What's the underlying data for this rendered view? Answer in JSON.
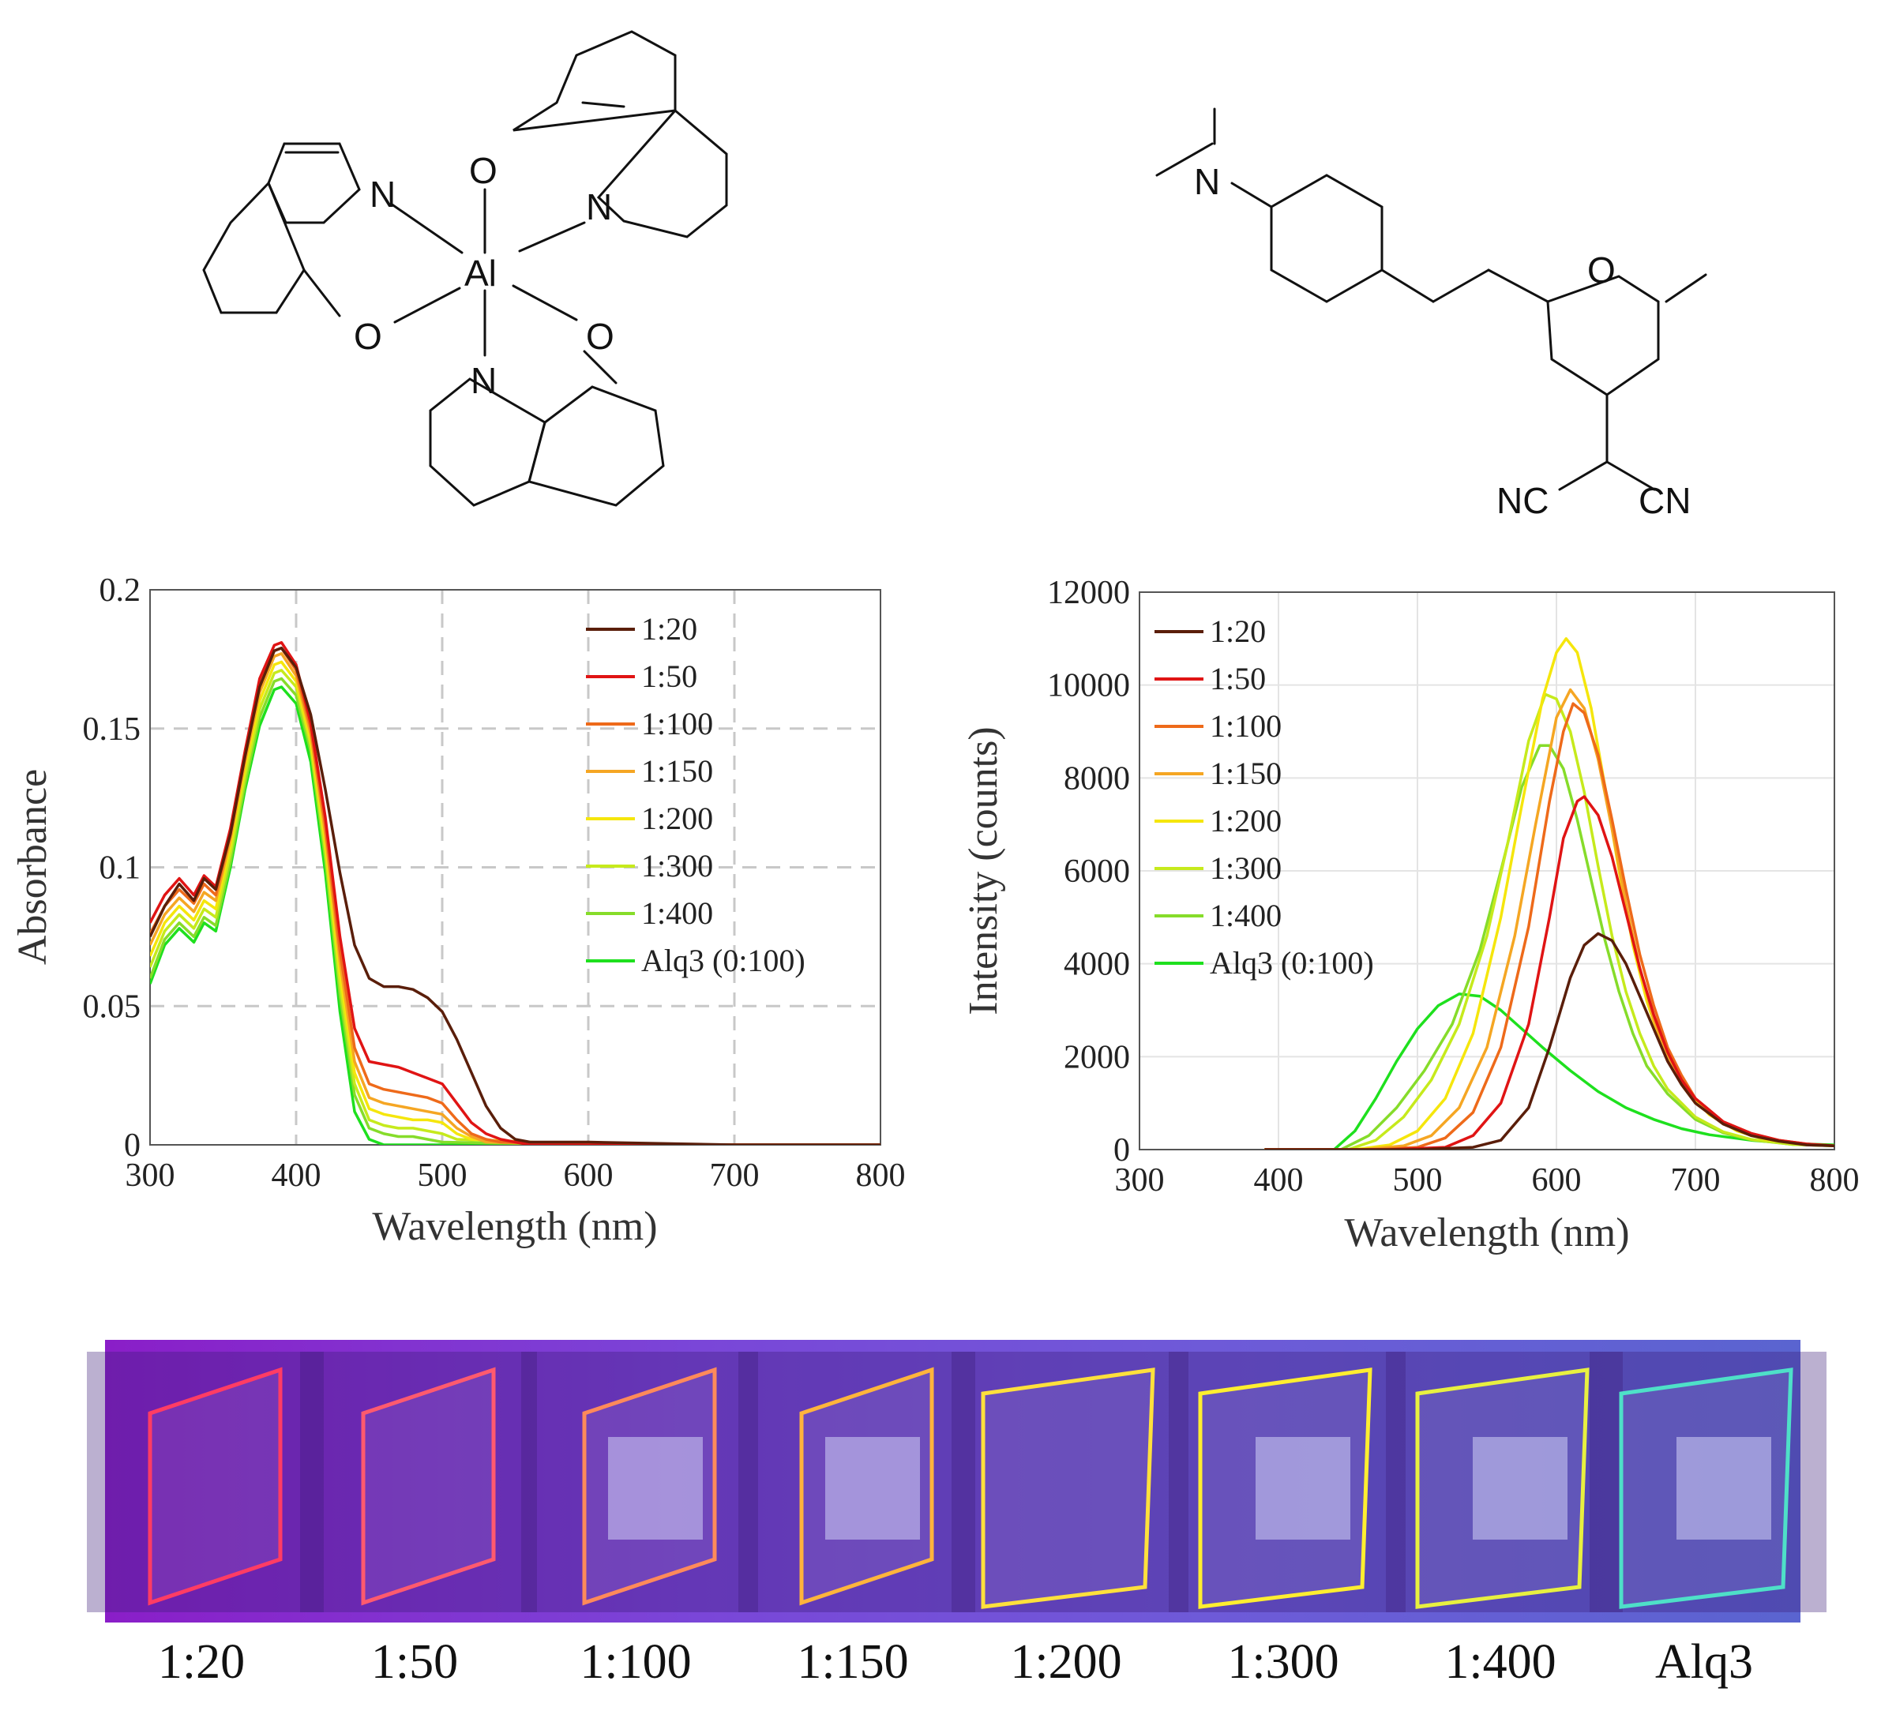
{
  "structures": {
    "alq3_atoms": [
      "N",
      "N",
      "N",
      "O",
      "O",
      "O",
      "Al"
    ],
    "dcm_atoms": [
      "N",
      "O",
      "NC",
      "CN"
    ]
  },
  "chart_data": [
    {
      "type": "line",
      "xlabel": "Wavelength (nm)",
      "ylabel": "Absorbance",
      "xlim": [
        300,
        800
      ],
      "ylim": [
        0,
        0.2
      ],
      "xticks": [
        "300",
        "400",
        "500",
        "600",
        "700",
        "800"
      ],
      "yticks": [
        "0",
        "0.05",
        "0.1",
        "0.15",
        "0.2"
      ],
      "grid": "dashed",
      "legend_position": "top-right",
      "series": [
        {
          "name": "1:20",
          "color": "#5a1e0a",
          "x": [
            300,
            310,
            320,
            330,
            337,
            345,
            355,
            365,
            375,
            385,
            390,
            400,
            410,
            420,
            430,
            440,
            450,
            460,
            470,
            480,
            490,
            500,
            510,
            520,
            530,
            540,
            550,
            560,
            600,
            700,
            800
          ],
          "y": [
            0.075,
            0.086,
            0.094,
            0.088,
            0.096,
            0.092,
            0.112,
            0.14,
            0.165,
            0.178,
            0.179,
            0.172,
            0.155,
            0.128,
            0.098,
            0.072,
            0.06,
            0.057,
            0.057,
            0.056,
            0.053,
            0.048,
            0.038,
            0.026,
            0.014,
            0.006,
            0.002,
            0.001,
            0.001,
            0.0,
            0.0
          ]
        },
        {
          "name": "1:50",
          "color": "#e01414",
          "x": [
            300,
            310,
            320,
            330,
            337,
            345,
            355,
            365,
            375,
            385,
            390,
            400,
            410,
            420,
            430,
            440,
            450,
            460,
            470,
            480,
            490,
            500,
            510,
            520,
            530,
            540,
            550,
            560,
            600,
            700,
            800
          ],
          "y": [
            0.08,
            0.09,
            0.096,
            0.09,
            0.097,
            0.093,
            0.114,
            0.142,
            0.168,
            0.18,
            0.181,
            0.173,
            0.152,
            0.118,
            0.075,
            0.042,
            0.03,
            0.029,
            0.028,
            0.026,
            0.024,
            0.022,
            0.015,
            0.008,
            0.004,
            0.002,
            0.001,
            0.0,
            0.0,
            0.0,
            0.0
          ]
        },
        {
          "name": "1:100",
          "color": "#ee6a1a",
          "x": [
            300,
            310,
            320,
            330,
            337,
            345,
            355,
            365,
            375,
            385,
            390,
            400,
            410,
            420,
            430,
            440,
            450,
            460,
            470,
            480,
            490,
            500,
            510,
            520,
            530,
            540,
            600,
            700,
            800
          ],
          "y": [
            0.076,
            0.086,
            0.092,
            0.087,
            0.094,
            0.09,
            0.112,
            0.14,
            0.166,
            0.178,
            0.179,
            0.171,
            0.15,
            0.115,
            0.07,
            0.035,
            0.022,
            0.02,
            0.019,
            0.018,
            0.017,
            0.015,
            0.009,
            0.004,
            0.002,
            0.001,
            0.0,
            0.0,
            0.0
          ]
        },
        {
          "name": "1:150",
          "color": "#f5a623",
          "x": [
            300,
            310,
            320,
            330,
            337,
            345,
            355,
            365,
            375,
            385,
            390,
            400,
            410,
            420,
            430,
            440,
            450,
            460,
            470,
            480,
            490,
            500,
            510,
            520,
            530,
            600,
            700,
            800
          ],
          "y": [
            0.072,
            0.083,
            0.089,
            0.084,
            0.091,
            0.088,
            0.11,
            0.138,
            0.163,
            0.176,
            0.177,
            0.169,
            0.148,
            0.112,
            0.066,
            0.03,
            0.017,
            0.015,
            0.014,
            0.013,
            0.012,
            0.011,
            0.006,
            0.003,
            0.001,
            0.0,
            0.0,
            0.0
          ]
        },
        {
          "name": "1:200",
          "color": "#f5e60c",
          "x": [
            300,
            310,
            320,
            330,
            337,
            345,
            355,
            365,
            375,
            385,
            390,
            400,
            410,
            420,
            430,
            440,
            450,
            460,
            470,
            480,
            490,
            500,
            510,
            520,
            600,
            700,
            800
          ],
          "y": [
            0.068,
            0.08,
            0.086,
            0.081,
            0.088,
            0.085,
            0.108,
            0.136,
            0.16,
            0.173,
            0.174,
            0.167,
            0.146,
            0.109,
            0.062,
            0.026,
            0.013,
            0.011,
            0.01,
            0.009,
            0.009,
            0.008,
            0.004,
            0.002,
            0.0,
            0.0,
            0.0
          ]
        },
        {
          "name": "1:300",
          "color": "#c6ea1c",
          "x": [
            300,
            310,
            320,
            330,
            337,
            345,
            355,
            365,
            375,
            385,
            390,
            400,
            410,
            420,
            430,
            440,
            450,
            460,
            470,
            480,
            490,
            500,
            510,
            600,
            700,
            800
          ],
          "y": [
            0.064,
            0.077,
            0.083,
            0.078,
            0.085,
            0.082,
            0.105,
            0.133,
            0.157,
            0.17,
            0.171,
            0.165,
            0.144,
            0.106,
            0.058,
            0.022,
            0.009,
            0.007,
            0.006,
            0.006,
            0.005,
            0.004,
            0.002,
            0.0,
            0.0,
            0.0
          ]
        },
        {
          "name": "1:400",
          "color": "#86dc2a",
          "x": [
            300,
            310,
            320,
            330,
            337,
            345,
            355,
            365,
            375,
            385,
            390,
            400,
            410,
            420,
            430,
            440,
            450,
            460,
            470,
            480,
            490,
            500,
            600,
            700,
            800
          ],
          "y": [
            0.06,
            0.074,
            0.08,
            0.075,
            0.082,
            0.079,
            0.102,
            0.13,
            0.154,
            0.167,
            0.168,
            0.162,
            0.142,
            0.103,
            0.054,
            0.018,
            0.006,
            0.004,
            0.003,
            0.003,
            0.002,
            0.001,
            0.0,
            0.0,
            0.0
          ]
        },
        {
          "name": "Alq3 (0:100)",
          "color": "#1ee01e",
          "x": [
            300,
            310,
            320,
            330,
            337,
            345,
            355,
            365,
            375,
            385,
            390,
            400,
            410,
            420,
            430,
            440,
            450,
            460,
            600,
            700,
            800
          ],
          "y": [
            0.058,
            0.072,
            0.078,
            0.073,
            0.08,
            0.077,
            0.1,
            0.128,
            0.151,
            0.164,
            0.165,
            0.159,
            0.138,
            0.098,
            0.048,
            0.012,
            0.002,
            0.0,
            0.0,
            0.0,
            0.0
          ]
        }
      ]
    },
    {
      "type": "line",
      "xlabel": "Wavelength (nm)",
      "ylabel": "Intensity (counts)",
      "xlim": [
        300,
        800
      ],
      "ylim": [
        0,
        12000
      ],
      "xticks": [
        "300",
        "400",
        "500",
        "600",
        "700",
        "800"
      ],
      "yticks": [
        "0",
        "2000",
        "4000",
        "6000",
        "8000",
        "10000",
        "12000"
      ],
      "grid": "solid",
      "legend_position": "top-left",
      "series": [
        {
          "name": "1:20",
          "color": "#5a1e0a",
          "x": [
            390,
            500,
            540,
            560,
            580,
            595,
            610,
            620,
            630,
            640,
            650,
            660,
            670,
            680,
            690,
            700,
            720,
            740,
            760,
            780,
            800
          ],
          "y": [
            0,
            0,
            50,
            200,
            900,
            2200,
            3700,
            4400,
            4650,
            4500,
            4000,
            3300,
            2600,
            1900,
            1400,
            1000,
            550,
            300,
            180,
            100,
            80
          ]
        },
        {
          "name": "1:50",
          "color": "#e01414",
          "x": [
            390,
            480,
            520,
            540,
            560,
            580,
            595,
            605,
            615,
            620,
            630,
            640,
            650,
            660,
            670,
            680,
            690,
            700,
            720,
            740,
            760,
            780,
            800
          ],
          "y": [
            0,
            0,
            50,
            300,
            1000,
            2700,
            5000,
            6700,
            7500,
            7600,
            7200,
            6300,
            5100,
            3900,
            2900,
            2100,
            1500,
            1100,
            600,
            350,
            200,
            120,
            80
          ]
        },
        {
          "name": "1:100",
          "color": "#ee6a1a",
          "x": [
            390,
            470,
            500,
            520,
            540,
            560,
            580,
            595,
            605,
            612,
            620,
            630,
            640,
            650,
            660,
            670,
            680,
            690,
            700,
            720,
            740,
            760,
            780,
            800
          ],
          "y": [
            0,
            0,
            50,
            250,
            800,
            2200,
            4800,
            7500,
            9000,
            9600,
            9400,
            8500,
            7100,
            5600,
            4200,
            3100,
            2200,
            1600,
            1100,
            600,
            350,
            200,
            120,
            80
          ]
        },
        {
          "name": "1:150",
          "color": "#f5a623",
          "x": [
            390,
            460,
            490,
            510,
            530,
            550,
            570,
            585,
            600,
            610,
            620,
            630,
            640,
            650,
            660,
            670,
            680,
            690,
            700,
            720,
            740,
            760,
            780,
            800
          ],
          "y": [
            0,
            0,
            80,
            300,
            900,
            2200,
            4600,
            7000,
            9300,
            9900,
            9500,
            8400,
            6900,
            5300,
            3900,
            2800,
            2000,
            1400,
            1000,
            550,
            320,
            190,
            110,
            80
          ]
        },
        {
          "name": "1:200",
          "color": "#f5e60c",
          "x": [
            390,
            455,
            480,
            500,
            520,
            540,
            560,
            575,
            590,
            600,
            607,
            615,
            625,
            635,
            645,
            655,
            665,
            675,
            690,
            710,
            730,
            750,
            780,
            800
          ],
          "y": [
            0,
            0,
            100,
            400,
            1100,
            2500,
            5000,
            7400,
            9700,
            10700,
            11000,
            10700,
            9500,
            7800,
            6000,
            4400,
            3200,
            2300,
            1400,
            750,
            400,
            220,
            110,
            80
          ]
        },
        {
          "name": "1:300",
          "color": "#c6ea1c",
          "x": [
            390,
            450,
            470,
            490,
            510,
            530,
            550,
            565,
            580,
            592,
            600,
            610,
            620,
            630,
            640,
            650,
            660,
            670,
            680,
            700,
            720,
            740,
            770,
            800
          ],
          "y": [
            0,
            0,
            200,
            700,
            1500,
            2700,
            4600,
            6600,
            8800,
            9800,
            9700,
            9000,
            7700,
            6100,
            4600,
            3400,
            2500,
            1800,
            1300,
            700,
            380,
            220,
            110,
            80
          ]
        },
        {
          "name": "1:400",
          "color": "#86dc2a",
          "x": [
            390,
            445,
            465,
            485,
            505,
            525,
            545,
            560,
            575,
            588,
            595,
            605,
            615,
            625,
            635,
            645,
            655,
            665,
            680,
            700,
            720,
            740,
            770,
            800
          ],
          "y": [
            0,
            0,
            300,
            900,
            1700,
            2700,
            4300,
            6000,
            7800,
            8700,
            8700,
            8200,
            7100,
            5800,
            4500,
            3400,
            2500,
            1800,
            1200,
            650,
            360,
            210,
            110,
            80
          ]
        },
        {
          "name": "Alq3 (0:100)",
          "color": "#1ee01e",
          "x": [
            390,
            440,
            455,
            470,
            485,
            500,
            515,
            530,
            545,
            560,
            575,
            590,
            610,
            630,
            650,
            670,
            690,
            710,
            740,
            770,
            800
          ],
          "y": [
            0,
            0,
            400,
            1100,
            1900,
            2600,
            3100,
            3350,
            3300,
            3000,
            2600,
            2200,
            1700,
            1250,
            900,
            650,
            450,
            320,
            200,
            130,
            100
          ]
        }
      ]
    }
  ],
  "photo": {
    "labels": [
      "1:20",
      "1:50",
      "1:100",
      "1:150",
      "1:200",
      "1:300",
      "1:400",
      "Alq3"
    ],
    "edge_colors": [
      "#ff3c64",
      "#ff5a6e",
      "#ff8a5a",
      "#ffb43c",
      "#ffe03c",
      "#ffee30",
      "#e8f040",
      "#4ee0c8"
    ]
  }
}
